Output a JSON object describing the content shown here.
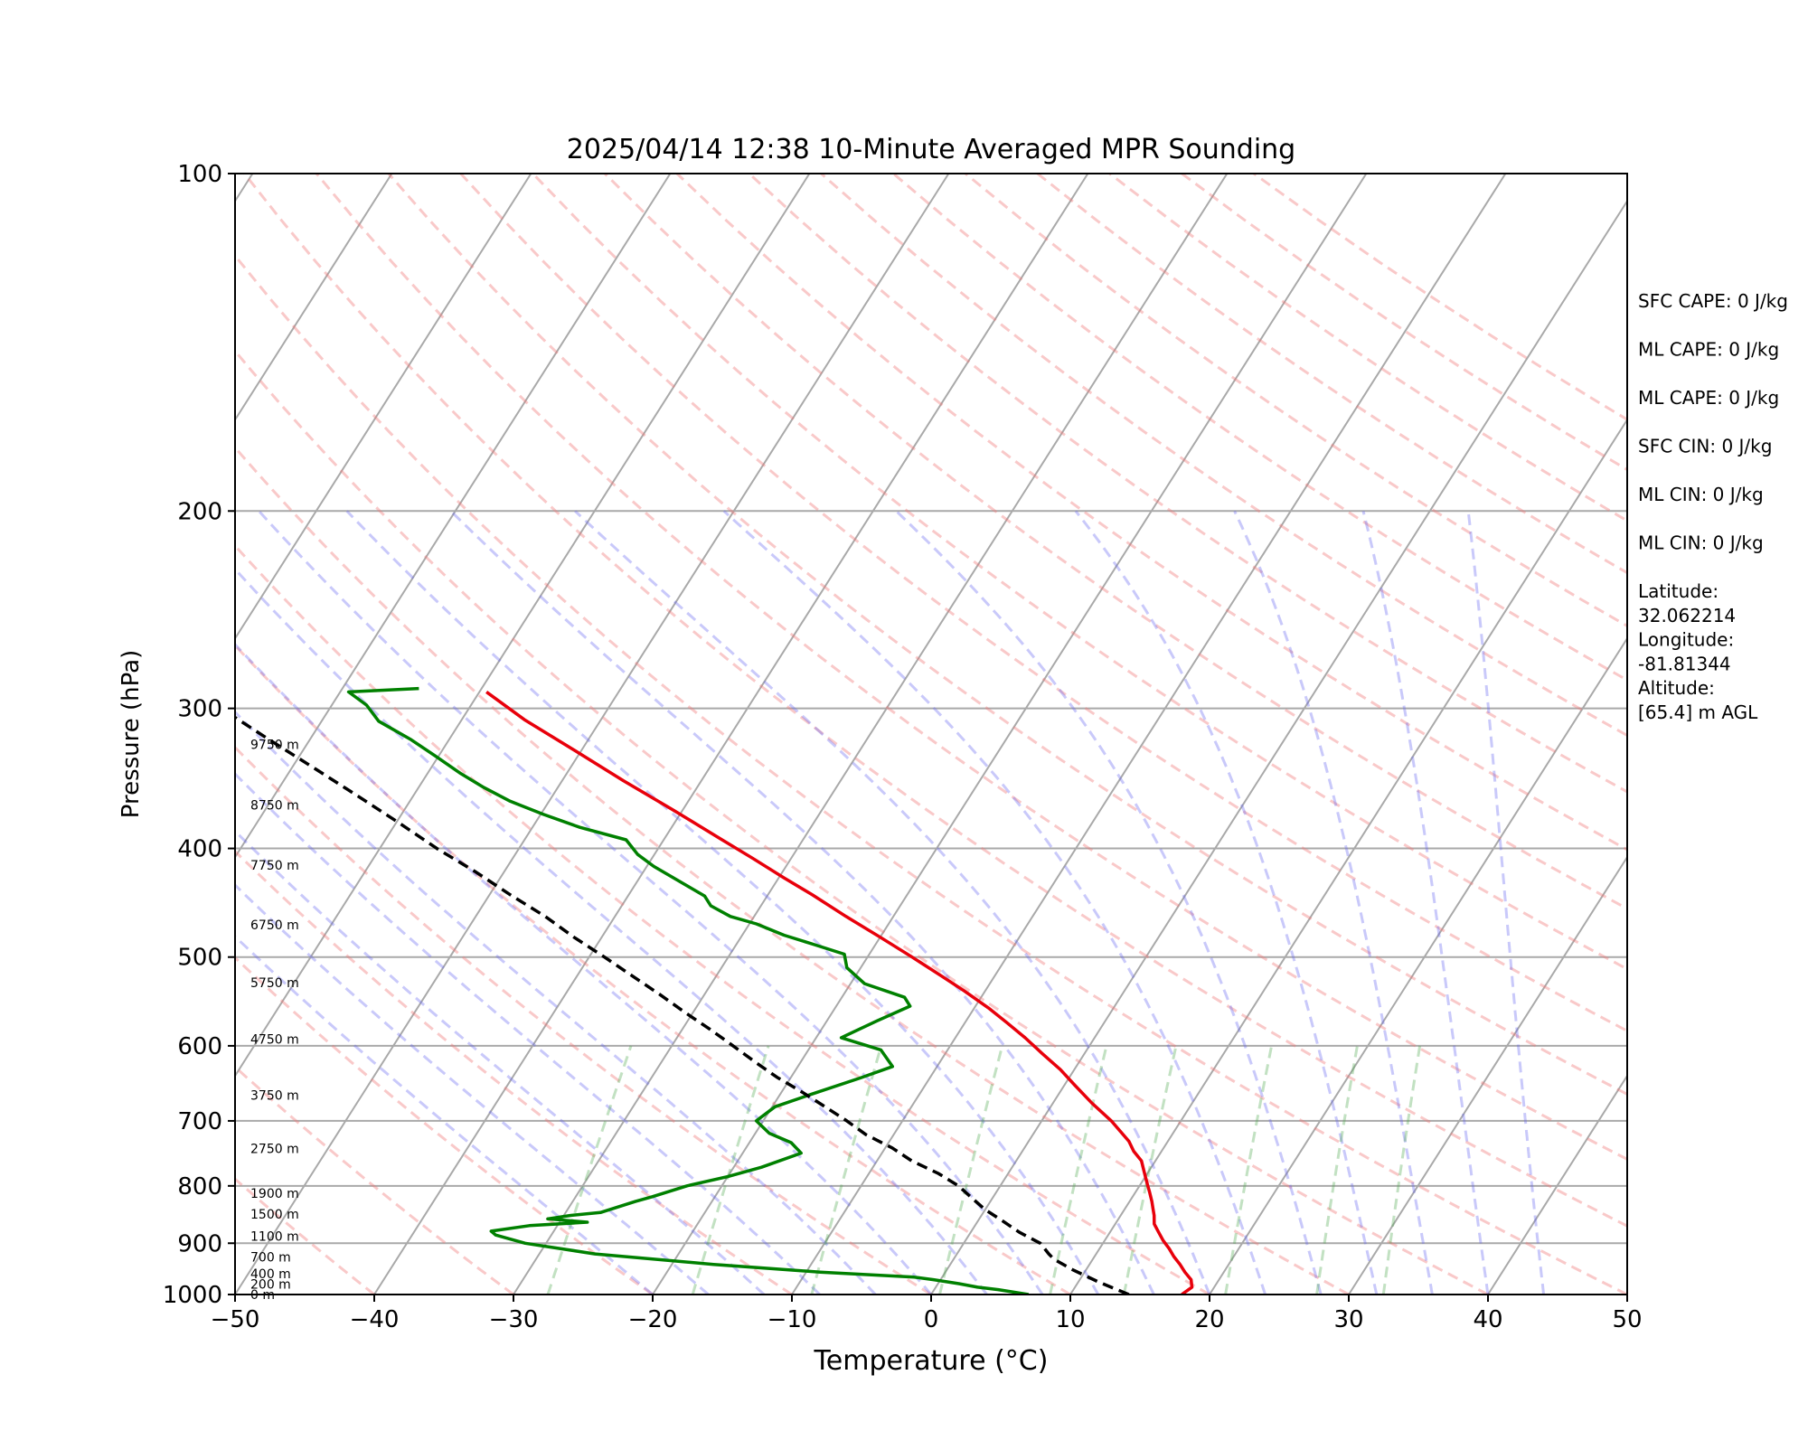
{
  "chart_data": {
    "type": "line",
    "title": "2025/04/14 12:38 10-Minute Averaged MPR Sounding",
    "xlabel": "Temperature (°C)",
    "ylabel": "Pressure (hPa)",
    "xlim": [
      -50,
      50
    ],
    "ylim": [
      1000,
      100
    ],
    "yscale": "log",
    "skew": "skew-T",
    "grid": true,
    "x_ticks": [
      "−50",
      "−40",
      "−30",
      "−20",
      "−10",
      "0",
      "10",
      "20",
      "30",
      "40",
      "50"
    ],
    "y_ticks": [
      "1000",
      "900",
      "800",
      "700",
      "600",
      "500",
      "400",
      "300",
      "200",
      "100"
    ],
    "height_labels": [
      {
        "text": "0 m",
        "p": 1000
      },
      {
        "text": "200 m",
        "p": 979
      },
      {
        "text": "400 m",
        "p": 958
      },
      {
        "text": "700 m",
        "p": 926
      },
      {
        "text": "1100 m",
        "p": 887
      },
      {
        "text": "1500 m",
        "p": 848
      },
      {
        "text": "1900 m",
        "p": 812
      },
      {
        "text": "2750 m",
        "p": 741
      },
      {
        "text": "3750 m",
        "p": 664
      },
      {
        "text": "4750 m",
        "p": 592
      },
      {
        "text": "5750 m",
        "p": 527
      },
      {
        "text": "6750 m",
        "p": 468
      },
      {
        "text": "7750 m",
        "p": 414
      },
      {
        "text": "8750 m",
        "p": 366
      },
      {
        "text": "9750 m",
        "p": 323
      }
    ],
    "series": [
      {
        "color": "#e8000b",
        "style": "solid",
        "points": [
          [
            18.0,
            1000
          ],
          [
            18.4,
            985
          ],
          [
            18.0,
            970
          ],
          [
            17.2,
            955
          ],
          [
            16.5,
            940
          ],
          [
            15.7,
            925
          ],
          [
            15.0,
            910
          ],
          [
            14.2,
            895
          ],
          [
            13.5,
            880
          ],
          [
            12.8,
            865
          ],
          [
            12.4,
            850
          ],
          [
            12.0,
            838
          ],
          [
            11.6,
            826
          ],
          [
            11.0,
            810
          ],
          [
            10.6,
            800
          ],
          [
            10.2,
            790
          ],
          [
            9.4,
            770
          ],
          [
            9.0,
            760
          ],
          [
            8.0,
            745
          ],
          [
            7.2,
            730
          ],
          [
            5.0,
            700
          ],
          [
            2.8,
            675
          ],
          [
            0.7,
            650
          ],
          [
            -1.0,
            630
          ],
          [
            -3.0,
            610
          ],
          [
            -5.0,
            590
          ],
          [
            -7.0,
            572
          ],
          [
            -9.0,
            555
          ],
          [
            -11.5,
            536
          ],
          [
            -13.8,
            520
          ],
          [
            -16.8,
            500
          ],
          [
            -20.0,
            480
          ],
          [
            -23.4,
            460
          ],
          [
            -26.8,
            440
          ],
          [
            -29.6,
            425
          ],
          [
            -32.8,
            408
          ],
          [
            -36.0,
            392
          ],
          [
            -40.6,
            370
          ],
          [
            -45.6,
            348
          ],
          [
            -50.5,
            327
          ],
          [
            -55.5,
            307
          ],
          [
            -59.5,
            290
          ]
        ]
      },
      {
        "color": "#008000",
        "style": "solid",
        "points": [
          [
            7.0,
            1000
          ],
          [
            4.6,
            990
          ],
          [
            3.0,
            985
          ],
          [
            1.5,
            978
          ],
          [
            -0.5,
            970
          ],
          [
            -2.0,
            965
          ],
          [
            -9.0,
            955
          ],
          [
            -17.0,
            940
          ],
          [
            -26.0,
            920
          ],
          [
            -31.5,
            900
          ],
          [
            -34.0,
            885
          ],
          [
            -34.5,
            878
          ],
          [
            -32.0,
            868
          ],
          [
            -28.0,
            862
          ],
          [
            -31.0,
            856
          ],
          [
            -29.5,
            850
          ],
          [
            -27.5,
            845
          ],
          [
            -25.5,
            826
          ],
          [
            -24.5,
            818
          ],
          [
            -22.5,
            800
          ],
          [
            -20.0,
            785
          ],
          [
            -18.0,
            770
          ],
          [
            -15.8,
            748
          ],
          [
            -17.0,
            732
          ],
          [
            -19.0,
            718
          ],
          [
            -20.5,
            700
          ],
          [
            -19.8,
            680
          ],
          [
            -17.8,
            663
          ],
          [
            -15.0,
            641
          ],
          [
            -13.2,
            626
          ],
          [
            -14.8,
            605
          ],
          [
            -18.2,
            590
          ],
          [
            -16.4,
            570
          ],
          [
            -14.7,
            553
          ],
          [
            -15.5,
            543
          ],
          [
            -19.0,
            528
          ],
          [
            -21.0,
            511
          ],
          [
            -21.8,
            497
          ],
          [
            -24.5,
            487
          ],
          [
            -27.0,
            478
          ],
          [
            -29.5,
            467
          ],
          [
            -31.7,
            460
          ],
          [
            -33.6,
            450
          ],
          [
            -34.5,
            441
          ],
          [
            -36.2,
            432
          ],
          [
            -39.5,
            415
          ],
          [
            -41.2,
            405
          ],
          [
            -42.7,
            393
          ],
          [
            -46.6,
            383
          ],
          [
            -49.8,
            373
          ],
          [
            -52.8,
            363
          ],
          [
            -55.3,
            353
          ],
          [
            -57.6,
            343
          ],
          [
            -60.2,
            331
          ],
          [
            -62.7,
            320
          ],
          [
            -65.9,
            308
          ],
          [
            -67.5,
            298
          ],
          [
            -69.4,
            290
          ],
          [
            -64.5,
            288
          ]
        ]
      },
      {
        "color": "#000000",
        "style": "dashed",
        "points": [
          [
            14.2,
            1000
          ],
          [
            11.5,
            975
          ],
          [
            9.0,
            950
          ],
          [
            7.2,
            930
          ],
          [
            6.6,
            920
          ],
          [
            5.5,
            900
          ],
          [
            3.5,
            880
          ],
          [
            1.8,
            860
          ],
          [
            0.0,
            840
          ],
          [
            -1.5,
            820
          ],
          [
            -3.0,
            800
          ],
          [
            -5.0,
            780
          ],
          [
            -7.5,
            760
          ],
          [
            -9.5,
            740
          ],
          [
            -12.0,
            720
          ],
          [
            -14.0,
            700
          ],
          [
            -16.2,
            680
          ],
          [
            -18.5,
            660
          ],
          [
            -21.0,
            640
          ],
          [
            -23.3,
            620
          ],
          [
            -25.6,
            600
          ],
          [
            -28.0,
            580
          ],
          [
            -30.6,
            560
          ],
          [
            -33.2,
            540
          ],
          [
            -36.0,
            520
          ],
          [
            -38.9,
            500
          ],
          [
            -42.0,
            480
          ],
          [
            -45.0,
            460
          ],
          [
            -48.5,
            440
          ],
          [
            -52.0,
            420
          ],
          [
            -55.9,
            400
          ],
          [
            -59.7,
            380
          ],
          [
            -63.8,
            360
          ],
          [
            -68.2,
            340
          ],
          [
            -72.9,
            320
          ],
          [
            -77.8,
            300
          ],
          [
            -80.2,
            291
          ]
        ]
      }
    ]
  },
  "info": [
    [
      "SFC CAPE: 0 J/kg"
    ],
    [
      "ML CAPE: 0 J/kg"
    ],
    [
      "ML CAPE: 0 J/kg"
    ],
    [
      "SFC CIN: 0 J/kg"
    ],
    [
      "ML CIN: 0 J/kg"
    ],
    [
      "ML CIN: 0 J/kg"
    ],
    [
      "Latitude:",
      "32.062214"
    ],
    [
      "Longitude:",
      "-81.81344"
    ],
    [
      "Altitude:",
      "[65.4] m AGL"
    ]
  ]
}
